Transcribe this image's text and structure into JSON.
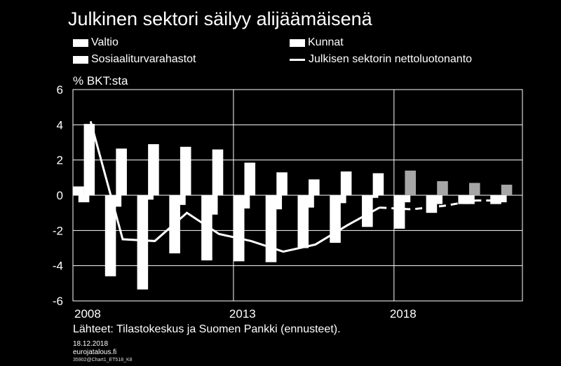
{
  "title": "Julkinen sektori säilyy alijäämäisenä",
  "unit_label": "% BKT:sta",
  "legend": {
    "valtio": "Valtio",
    "kunnat": "Kunnat",
    "sosiaali": "Sosiaaliturvarahastot",
    "julkinen": "Julkisen sektorin nettoluotonanto"
  },
  "source": "Lähteet: Tilastokeskus ja Suomen Pankki (ennusteet).",
  "date": "18.12.2018",
  "site": "eurojatalous.fi",
  "code": "35902@Chart1_ET518_K8",
  "colors": {
    "background": "#000000",
    "valtio": "#ffffff",
    "kunnat_forecast": "#a6a6a6",
    "sosiaali": "#ffffff",
    "line": "#ffffff",
    "grid": "#ffffff"
  },
  "chart_data": {
    "type": "bar",
    "title": "Julkinen sektori säilyy alijäämäisenä",
    "ylabel": "% BKT:sta",
    "ylim": [
      -6,
      6
    ],
    "yticks": [
      -6,
      -4,
      -2,
      0,
      2,
      4,
      6
    ],
    "xtick_labels": [
      {
        "label": "2008",
        "year": 2008
      },
      {
        "label": "2013",
        "year": 2013
      },
      {
        "label": "2018",
        "year": 2018
      }
    ],
    "categories": [
      "2008",
      "2009",
      "2010",
      "2011",
      "2012",
      "2013",
      "2014",
      "2015",
      "2016",
      "2017",
      "2018",
      "2019",
      "2020",
      "2021"
    ],
    "forecast_start": "2018",
    "line_forecast_from": "2017",
    "series": [
      {
        "name": "Valtio",
        "type": "bar",
        "position": "left",
        "values": [
          0.5,
          -4.6,
          -5.35,
          -3.3,
          -3.7,
          -3.75,
          -3.8,
          -3.0,
          -2.7,
          -1.8,
          -1.9,
          -1.0,
          -0.5,
          -0.5
        ]
      },
      {
        "name": "Kunnat",
        "type": "bar",
        "position": "middle",
        "values": [
          -0.4,
          -0.65,
          -0.25,
          -0.55,
          -1.1,
          -0.75,
          -0.8,
          -0.7,
          -0.45,
          -0.15,
          -0.4,
          -0.5,
          -0.5,
          -0.4
        ]
      },
      {
        "name": "Sosiaaliturvarahastot",
        "type": "bar",
        "position": "right",
        "values": [
          4.05,
          2.65,
          2.9,
          2.75,
          2.6,
          1.85,
          1.3,
          0.9,
          1.35,
          1.25,
          1.4,
          0.8,
          0.7,
          0.6
        ]
      },
      {
        "name": "Julkisen sektorin nettoluotonanto",
        "type": "line",
        "values": [
          4.2,
          -2.5,
          -2.6,
          -1.0,
          -2.2,
          -2.6,
          -3.2,
          -2.8,
          -1.7,
          -0.7,
          -0.8,
          -0.6,
          -0.3,
          -0.3
        ]
      }
    ]
  }
}
